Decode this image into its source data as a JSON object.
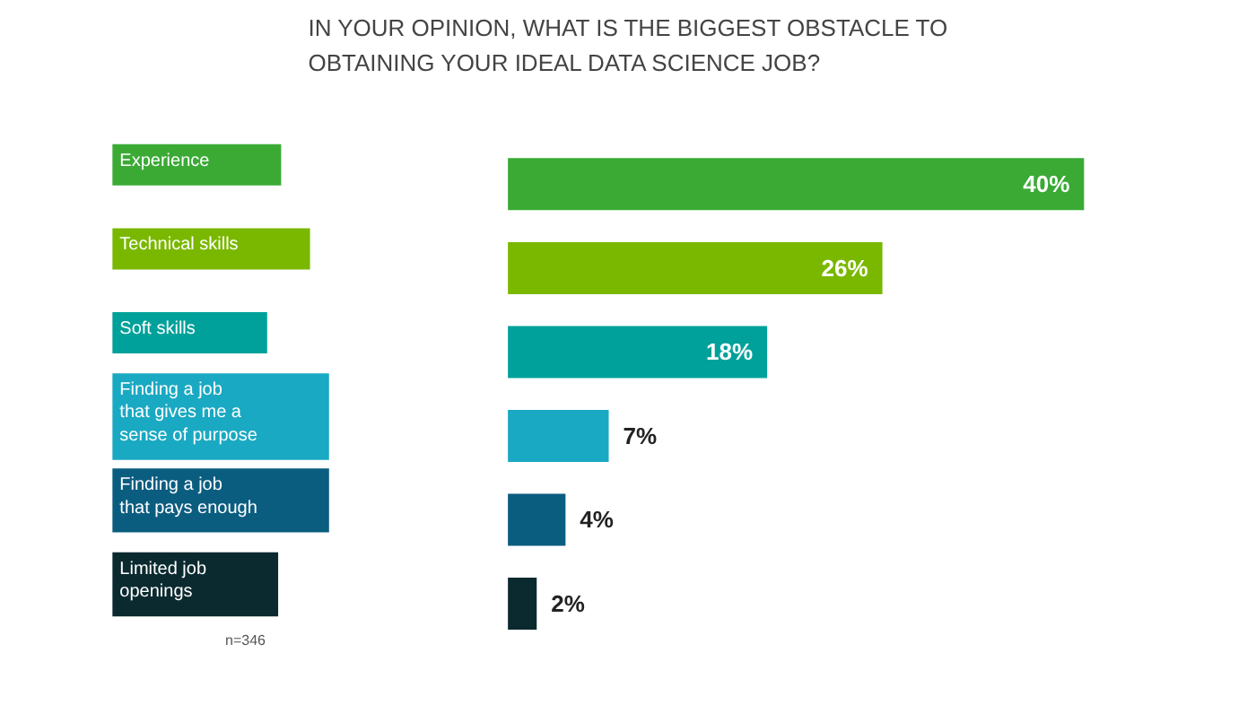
{
  "chart_data": {
    "type": "bar",
    "orientation": "horizontal",
    "title": "IN YOUR OPINION, WHAT IS THE BIGGEST OBSTACLE TO OBTAINING YOUR IDEAL DATA SCIENCE JOB?",
    "categories": [
      "Experience",
      "Technical skills",
      "Soft skills",
      "Finding a job that gives me a sense of purpose",
      "Finding a job that pays enough",
      "Limited job openings"
    ],
    "values": [
      40,
      26,
      18,
      7,
      4,
      2
    ],
    "value_labels": [
      "40%",
      "26%",
      "18%",
      "7%",
      "4%",
      "2%"
    ],
    "colors": [
      "#3aaa35",
      "#7ab800",
      "#00a19a",
      "#1aa9c2",
      "#0b5d80",
      "#0b2a30"
    ],
    "annotations": [
      "n=346"
    ],
    "grid": false
  }
}
